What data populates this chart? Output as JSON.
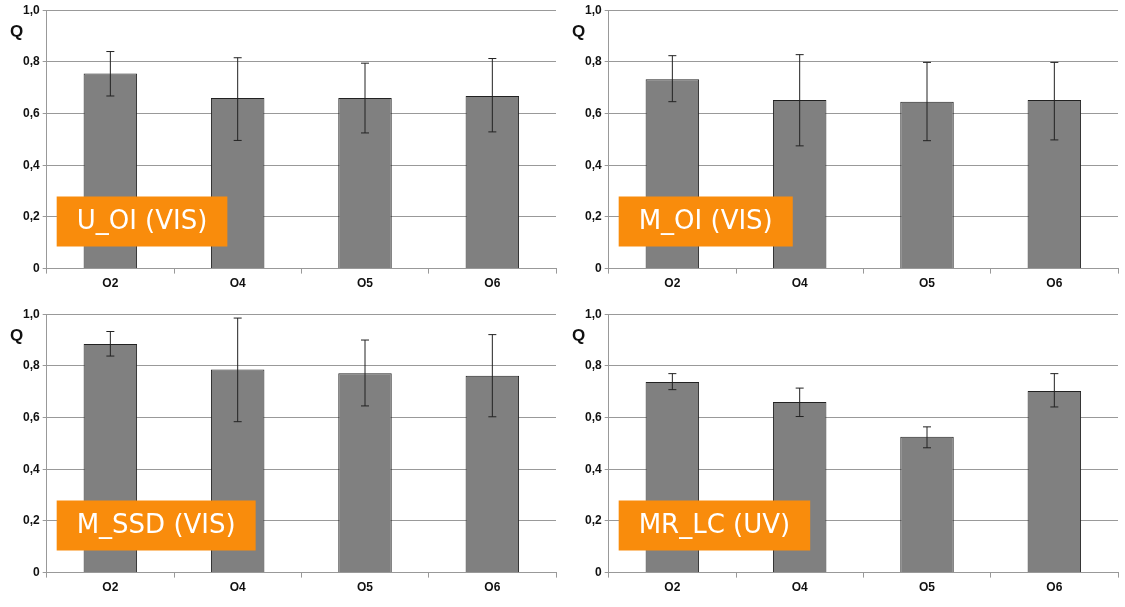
{
  "chart_data": [
    {
      "type": "bar",
      "ylabel": "Q",
      "annotations": [
        "U_OI (VIS)"
      ],
      "categories": [
        "O2",
        "O4",
        "O5",
        "O6"
      ],
      "color": "#808080",
      "values": [
        0.755,
        0.66,
        0.66,
        0.668
      ],
      "errors": [
        [
          0.668,
          0.84
        ],
        [
          0.496,
          0.816
        ],
        [
          0.525,
          0.795
        ],
        [
          0.529,
          0.813
        ]
      ],
      "ylim": [
        0,
        1
      ],
      "yticks": [
        {
          "value": 0,
          "label": "0"
        },
        {
          "value": 0.2,
          "label": "0,2"
        },
        {
          "value": 0.4,
          "label": "0,4"
        },
        {
          "value": 0.6,
          "label": "0,6"
        },
        {
          "value": 0.8,
          "label": "0,8"
        },
        {
          "value": 1,
          "label": "1,0"
        }
      ],
      "grid": "y",
      "legend": false
    },
    {
      "type": "bar",
      "ylabel": "Q",
      "annotations": [
        "M_OI (VIS)"
      ],
      "categories": [
        "O2",
        "O4",
        "O5",
        "O6"
      ],
      "color": "#808080",
      "values": [
        0.733,
        0.652,
        0.646,
        0.652
      ],
      "errors": [
        [
          0.646,
          0.824
        ],
        [
          0.475,
          0.828
        ],
        [
          0.495,
          0.798
        ],
        [
          0.498,
          0.798
        ]
      ],
      "ylim": [
        0,
        1
      ],
      "yticks": [
        {
          "value": 0,
          "label": "0"
        },
        {
          "value": 0.2,
          "label": "0,2"
        },
        {
          "value": 0.4,
          "label": "0,4"
        },
        {
          "value": 0.6,
          "label": "0,6"
        },
        {
          "value": 0.8,
          "label": "0,8"
        },
        {
          "value": 1,
          "label": "1,0"
        }
      ],
      "grid": "y",
      "legend": false
    },
    {
      "type": "bar",
      "ylabel": "Q",
      "annotations": [
        "M_SSD (VIS)"
      ],
      "categories": [
        "O2",
        "O4",
        "O5",
        "O6"
      ],
      "color": "#808080",
      "values": [
        0.885,
        0.786,
        0.771,
        0.762
      ],
      "errors": [
        [
          0.838,
          0.933
        ],
        [
          0.584,
          0.985
        ],
        [
          0.645,
          0.9
        ],
        [
          0.603,
          0.921
        ]
      ],
      "ylim": [
        0,
        1
      ],
      "yticks": [
        {
          "value": 0,
          "label": "0"
        },
        {
          "value": 0.2,
          "label": "0,2"
        },
        {
          "value": 0.4,
          "label": "0,4"
        },
        {
          "value": 0.6,
          "label": "0,6"
        },
        {
          "value": 0.8,
          "label": "0,8"
        },
        {
          "value": 1,
          "label": "1,0"
        }
      ],
      "grid": "y",
      "legend": false
    },
    {
      "type": "bar",
      "ylabel": "Q",
      "annotations": [
        "MR_LC (UV)"
      ],
      "categories": [
        "O2",
        "O4",
        "O5",
        "O6"
      ],
      "color": "#808080",
      "values": [
        0.738,
        0.66,
        0.526,
        0.703
      ],
      "errors": [
        [
          0.708,
          0.77
        ],
        [
          0.604,
          0.714
        ],
        [
          0.483,
          0.564
        ],
        [
          0.641,
          0.77
        ]
      ],
      "ylim": [
        0,
        1
      ],
      "yticks": [
        {
          "value": 0,
          "label": "0"
        },
        {
          "value": 0.2,
          "label": "0,2"
        },
        {
          "value": 0.4,
          "label": "0,4"
        },
        {
          "value": 0.6,
          "label": "0,6"
        },
        {
          "value": 0.8,
          "label": "0,8"
        },
        {
          "value": 1,
          "label": "1,0"
        }
      ],
      "grid": "y",
      "legend": false
    }
  ]
}
